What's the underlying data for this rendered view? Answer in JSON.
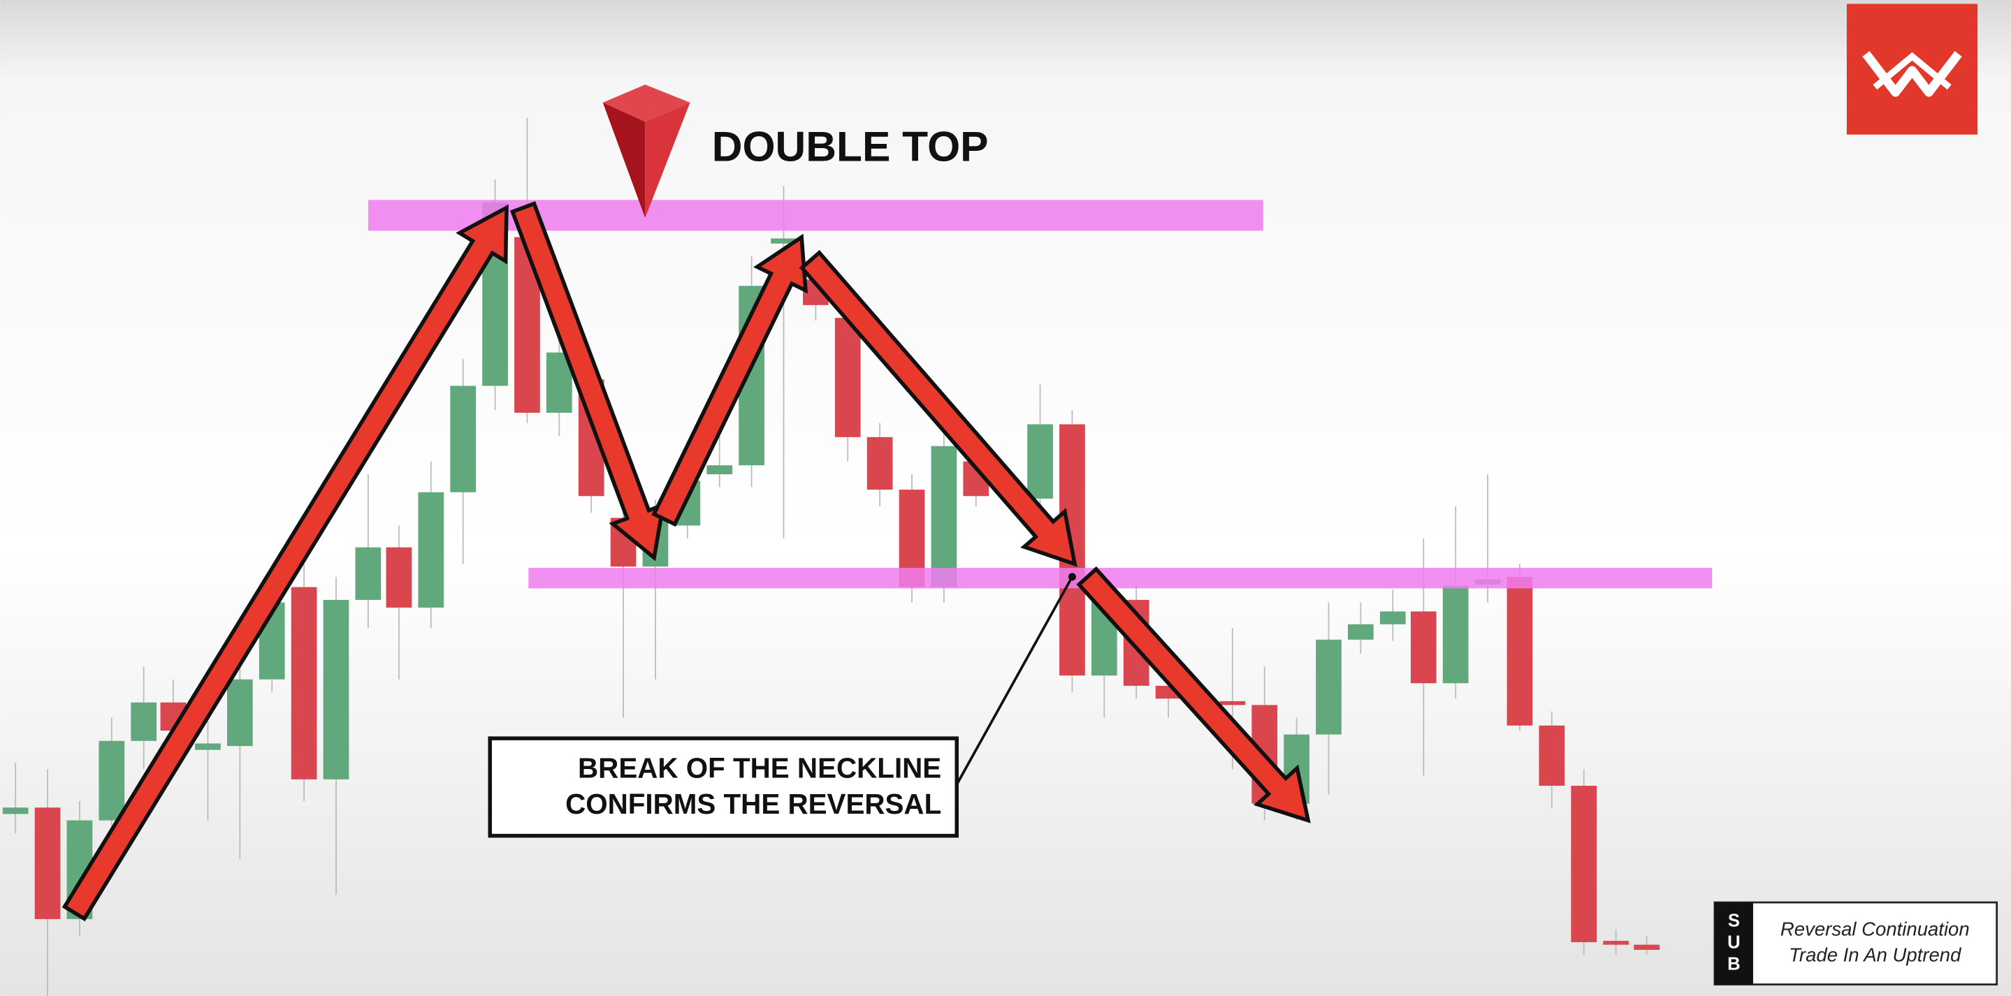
{
  "title": "DOUBLE TOP",
  "callout": {
    "lines": [
      "BREAK OF THE NECKLINE",
      "CONFIRMS THE REVERSAL"
    ]
  },
  "badge": {
    "letters": [
      "S",
      "U",
      "B"
    ],
    "lines": [
      "Reversal Continuation",
      "Trade In An Uptrend"
    ]
  }
}
